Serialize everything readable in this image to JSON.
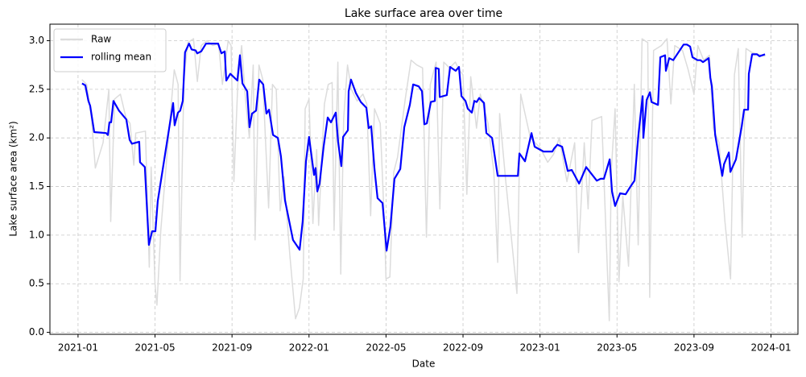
{
  "chart_data": {
    "type": "line",
    "title": "Lake surface area over time",
    "xlabel": "Date",
    "ylabel": "Lake surface area (km²)",
    "grid": true,
    "legend": "upper left",
    "xlim": [
      -1.46,
      37.4
    ],
    "ylim": [
      -0.02,
      3.17
    ],
    "xticks": [
      {
        "value": 0,
        "label": "2021-01"
      },
      {
        "value": 4,
        "label": "2021-05"
      },
      {
        "value": 8,
        "label": "2021-09"
      },
      {
        "value": 12,
        "label": "2022-01"
      },
      {
        "value": 16,
        "label": "2022-05"
      },
      {
        "value": 20,
        "label": "2022-09"
      },
      {
        "value": 24,
        "label": "2023-01"
      },
      {
        "value": 28,
        "label": "2023-05"
      },
      {
        "value": 32,
        "label": "2023-09"
      },
      {
        "value": 36,
        "label": "2024-01"
      }
    ],
    "yticks": [
      {
        "value": 0,
        "label": "0.0"
      },
      {
        "value": 0.5,
        "label": "0.5"
      },
      {
        "value": 1,
        "label": "1.0"
      },
      {
        "value": 1.5,
        "label": "1.5"
      },
      {
        "value": 2,
        "label": "2.0"
      },
      {
        "value": 2.5,
        "label": "2.5"
      },
      {
        "value": 3,
        "label": "3.0"
      }
    ],
    "series": [
      {
        "name": "Raw",
        "color": "#dcdcdc",
        "x": [
          0.2,
          0.45,
          0.7,
          0.9,
          1.3,
          1.6,
          1.7,
          1.9,
          2.2,
          2.5,
          2.7,
          2.9,
          3.0,
          3.5,
          3.7,
          3.8,
          4.0,
          4.1,
          4.3,
          4.8,
          5.0,
          5.2,
          5.3,
          5.5,
          5.7,
          6.0,
          6.2,
          6.4,
          6.7,
          7.0,
          7.3,
          7.5,
          7.8,
          7.95,
          8.1,
          8.3,
          8.5,
          8.7,
          8.9,
          9.1,
          9.2,
          9.4,
          9.6,
          9.7,
          9.9,
          10.1,
          10.3,
          10.5,
          10.7,
          11.0,
          11.3,
          11.5,
          11.7,
          11.8,
          12.0,
          12.2,
          12.4,
          12.5,
          12.8,
          13.0,
          13.2,
          13.3,
          13.5,
          13.65,
          13.8,
          14.0,
          14.2,
          14.5,
          14.8,
          15.0,
          15.2,
          15.4,
          15.7,
          15.9,
          16.0,
          16.2,
          16.4,
          16.6,
          17.0,
          17.3,
          17.6,
          17.9,
          18.1,
          18.3,
          18.6,
          18.8,
          19.0,
          19.3,
          19.6,
          19.8,
          20.0,
          20.2,
          20.4,
          20.7,
          20.9,
          21.3,
          21.6,
          21.8,
          21.9,
          22.2,
          22.8,
          23.0,
          23.5,
          24.0,
          24.4,
          24.7,
          25.0,
          25.4,
          25.8,
          26.0,
          26.3,
          26.5,
          26.7,
          27.2,
          27.6,
          27.7,
          27.9,
          28.1,
          28.3,
          28.6,
          28.9,
          29.1,
          29.3,
          29.6,
          29.7,
          29.9,
          30.3,
          30.6,
          30.8,
          31.0,
          31.4,
          31.7,
          32.0,
          32.2,
          32.5,
          32.8,
          33.0,
          33.3,
          33.6,
          33.9,
          34.1,
          34.3,
          34.5,
          34.7,
          35.0,
          35.5,
          35.7
        ],
        "values": [
          2.6,
          2.55,
          2.2,
          1.69,
          1.95,
          2.5,
          1.14,
          2.4,
          2.45,
          2.2,
          2.15,
          1.72,
          2.05,
          2.07,
          0.67,
          1.7,
          0.5,
          0.28,
          1.05,
          2.25,
          2.7,
          2.55,
          0.53,
          2.6,
          2.98,
          3.02,
          2.58,
          2.95,
          3.0,
          2.95,
          2.97,
          2.55,
          3.0,
          2.95,
          1.55,
          2.55,
          2.95,
          2.4,
          2.0,
          2.75,
          0.95,
          2.75,
          2.6,
          2.15,
          1.28,
          2.55,
          2.5,
          1.25,
          1.6,
          0.8,
          0.14,
          0.25,
          0.55,
          2.3,
          2.4,
          1.12,
          1.88,
          1.1,
          2.35,
          2.55,
          2.57,
          1.05,
          2.78,
          0.6,
          2.2,
          2.75,
          2.5,
          2.38,
          2.45,
          2.35,
          1.2,
          2.3,
          2.15,
          1.2,
          0.55,
          0.57,
          1.65,
          1.8,
          2.4,
          2.8,
          2.75,
          2.72,
          0.98,
          2.55,
          2.78,
          1.27,
          2.78,
          2.72,
          2.78,
          2.7,
          2.65,
          1.42,
          2.63,
          2.1,
          2.45,
          2.15,
          1.65,
          0.72,
          2.25,
          1.6,
          0.4,
          2.45,
          2.0,
          1.9,
          1.75,
          1.83,
          2.0,
          1.55,
          1.95,
          0.82,
          1.95,
          1.27,
          2.18,
          2.22,
          0.12,
          1.65,
          2.3,
          0.52,
          1.4,
          0.68,
          2.55,
          0.9,
          3.02,
          2.98,
          0.36,
          2.9,
          2.95,
          3.02,
          2.35,
          2.95,
          2.9,
          2.7,
          2.45,
          2.95,
          2.8,
          2.85,
          2.1,
          1.95,
          1.15,
          0.55,
          2.65,
          2.92,
          0.98,
          2.92,
          2.88,
          2.85,
          2.84
        ]
      },
      {
        "name": "rolling mean",
        "color": "#0000ff",
        "x": [
          0.21,
          0.38,
          0.54,
          0.63,
          0.84,
          1.46,
          1.55,
          1.63,
          1.72,
          1.84,
          2.13,
          2.51,
          2.68,
          2.8,
          3.18,
          3.22,
          3.47,
          3.68,
          3.85,
          4.02,
          4.14,
          4.94,
          5.02,
          5.19,
          5.31,
          5.44,
          5.56,
          5.77,
          5.9,
          6.11,
          6.19,
          6.4,
          6.65,
          7.15,
          7.28,
          7.45,
          7.62,
          7.7,
          7.91,
          8.28,
          8.41,
          8.54,
          8.79,
          8.91,
          9.04,
          9.25,
          9.41,
          9.62,
          9.79,
          9.92,
          10.13,
          10.38,
          10.54,
          10.75,
          11.17,
          11.51,
          11.67,
          11.84,
          12.0,
          12.26,
          12.34,
          12.43,
          12.55,
          12.76,
          12.97,
          13.14,
          13.39,
          13.51,
          13.68,
          13.77,
          14.02,
          14.06,
          14.18,
          14.44,
          14.69,
          14.98,
          15.1,
          15.23,
          15.4,
          15.56,
          15.82,
          16.03,
          16.23,
          16.44,
          16.74,
          16.95,
          17.24,
          17.41,
          17.7,
          17.87,
          17.99,
          18.12,
          18.33,
          18.54,
          18.58,
          18.74,
          18.79,
          19.16,
          19.33,
          19.62,
          19.79,
          19.92,
          20.13,
          20.25,
          20.46,
          20.59,
          20.71,
          20.84,
          21.09,
          21.21,
          21.51,
          21.8,
          22.85,
          22.93,
          23.22,
          23.56,
          23.72,
          24.18,
          24.64,
          24.73,
          24.9,
          25.15,
          25.44,
          25.65,
          26.03,
          26.4,
          26.95,
          27.15,
          27.32,
          27.62,
          27.74,
          27.9,
          28.16,
          28.45,
          28.7,
          28.91,
          29.12,
          29.33,
          29.37,
          29.54,
          29.71,
          29.79,
          30.13,
          30.25,
          30.5,
          30.54,
          30.71,
          30.92,
          31.46,
          31.63,
          31.8,
          31.92,
          32.18,
          32.34,
          32.47,
          32.76,
          32.85,
          32.93,
          33.1,
          33.3,
          33.47,
          33.56,
          33.81,
          33.89,
          34.18,
          34.48,
          34.6,
          34.81,
          34.85,
          35.02,
          35.27,
          35.4,
          35.69
        ],
        "values": [
          2.56,
          2.54,
          2.38,
          2.33,
          2.06,
          2.05,
          2.03,
          2.16,
          2.16,
          2.38,
          2.28,
          2.19,
          1.98,
          1.94,
          1.96,
          1.75,
          1.7,
          0.9,
          1.04,
          1.04,
          1.35,
          2.36,
          2.13,
          2.26,
          2.28,
          2.38,
          2.88,
          2.97,
          2.91,
          2.9,
          2.87,
          2.89,
          2.97,
          2.97,
          2.97,
          2.87,
          2.89,
          2.59,
          2.66,
          2.59,
          2.85,
          2.56,
          2.48,
          2.11,
          2.25,
          2.28,
          2.6,
          2.55,
          2.25,
          2.29,
          2.03,
          2.0,
          1.81,
          1.36,
          0.95,
          0.85,
          1.14,
          1.76,
          2.01,
          1.62,
          1.69,
          1.45,
          1.53,
          1.91,
          2.21,
          2.16,
          2.26,
          1.96,
          1.71,
          2.01,
          2.08,
          2.48,
          2.6,
          2.46,
          2.37,
          2.31,
          2.1,
          2.12,
          1.68,
          1.38,
          1.33,
          0.84,
          1.09,
          1.58,
          1.68,
          2.11,
          2.34,
          2.55,
          2.53,
          2.48,
          2.14,
          2.15,
          2.37,
          2.38,
          2.72,
          2.71,
          2.42,
          2.44,
          2.73,
          2.69,
          2.73,
          2.43,
          2.38,
          2.3,
          2.26,
          2.38,
          2.37,
          2.41,
          2.36,
          2.05,
          2.0,
          1.61,
          1.61,
          1.84,
          1.76,
          2.05,
          1.91,
          1.86,
          1.86,
          1.89,
          1.93,
          1.91,
          1.66,
          1.67,
          1.53,
          1.7,
          1.56,
          1.58,
          1.58,
          1.78,
          1.45,
          1.3,
          1.43,
          1.42,
          1.5,
          1.56,
          2.05,
          2.43,
          2.0,
          2.39,
          2.47,
          2.37,
          2.34,
          2.83,
          2.85,
          2.69,
          2.82,
          2.8,
          2.96,
          2.96,
          2.94,
          2.83,
          2.8,
          2.8,
          2.78,
          2.82,
          2.62,
          2.53,
          2.03,
          1.8,
          1.61,
          1.73,
          1.85,
          1.65,
          1.78,
          2.12,
          2.29,
          2.29,
          2.66,
          2.86,
          2.86,
          2.84,
          2.86
        ]
      }
    ]
  }
}
